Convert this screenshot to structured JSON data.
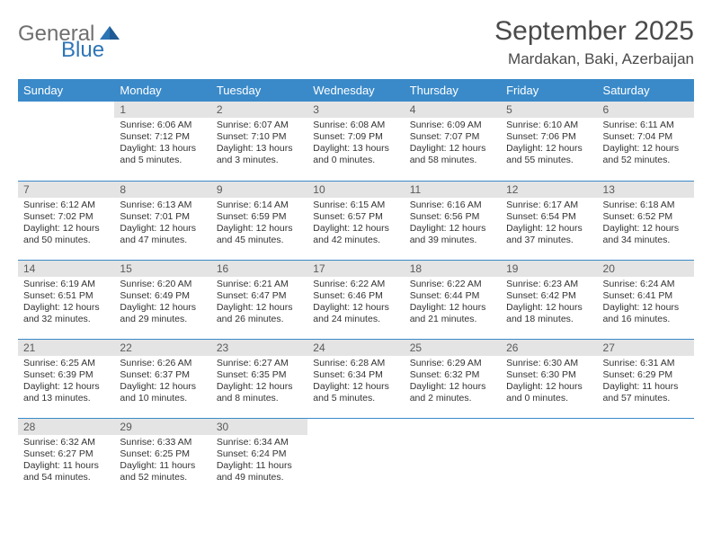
{
  "logo": {
    "general": "General",
    "blue": "Blue"
  },
  "title": "September 2025",
  "location": "Mardakan, Baki, Azerbaijan",
  "colors": {
    "header_bg": "#3a8ac9",
    "header_text": "#ffffff",
    "daynum_bg": "#e4e4e4",
    "row_border": "#3a8ac9",
    "logo_gray": "#6f6f6f",
    "logo_blue": "#2e75b6"
  },
  "weekdays": [
    "Sunday",
    "Monday",
    "Tuesday",
    "Wednesday",
    "Thursday",
    "Friday",
    "Saturday"
  ],
  "weeks": [
    [
      {
        "n": "",
        "t": ""
      },
      {
        "n": "1",
        "t": "Sunrise: 6:06 AM\nSunset: 7:12 PM\nDaylight: 13 hours and 5 minutes."
      },
      {
        "n": "2",
        "t": "Sunrise: 6:07 AM\nSunset: 7:10 PM\nDaylight: 13 hours and 3 minutes."
      },
      {
        "n": "3",
        "t": "Sunrise: 6:08 AM\nSunset: 7:09 PM\nDaylight: 13 hours and 0 minutes."
      },
      {
        "n": "4",
        "t": "Sunrise: 6:09 AM\nSunset: 7:07 PM\nDaylight: 12 hours and 58 minutes."
      },
      {
        "n": "5",
        "t": "Sunrise: 6:10 AM\nSunset: 7:06 PM\nDaylight: 12 hours and 55 minutes."
      },
      {
        "n": "6",
        "t": "Sunrise: 6:11 AM\nSunset: 7:04 PM\nDaylight: 12 hours and 52 minutes."
      }
    ],
    [
      {
        "n": "7",
        "t": "Sunrise: 6:12 AM\nSunset: 7:02 PM\nDaylight: 12 hours and 50 minutes."
      },
      {
        "n": "8",
        "t": "Sunrise: 6:13 AM\nSunset: 7:01 PM\nDaylight: 12 hours and 47 minutes."
      },
      {
        "n": "9",
        "t": "Sunrise: 6:14 AM\nSunset: 6:59 PM\nDaylight: 12 hours and 45 minutes."
      },
      {
        "n": "10",
        "t": "Sunrise: 6:15 AM\nSunset: 6:57 PM\nDaylight: 12 hours and 42 minutes."
      },
      {
        "n": "11",
        "t": "Sunrise: 6:16 AM\nSunset: 6:56 PM\nDaylight: 12 hours and 39 minutes."
      },
      {
        "n": "12",
        "t": "Sunrise: 6:17 AM\nSunset: 6:54 PM\nDaylight: 12 hours and 37 minutes."
      },
      {
        "n": "13",
        "t": "Sunrise: 6:18 AM\nSunset: 6:52 PM\nDaylight: 12 hours and 34 minutes."
      }
    ],
    [
      {
        "n": "14",
        "t": "Sunrise: 6:19 AM\nSunset: 6:51 PM\nDaylight: 12 hours and 32 minutes."
      },
      {
        "n": "15",
        "t": "Sunrise: 6:20 AM\nSunset: 6:49 PM\nDaylight: 12 hours and 29 minutes."
      },
      {
        "n": "16",
        "t": "Sunrise: 6:21 AM\nSunset: 6:47 PM\nDaylight: 12 hours and 26 minutes."
      },
      {
        "n": "17",
        "t": "Sunrise: 6:22 AM\nSunset: 6:46 PM\nDaylight: 12 hours and 24 minutes."
      },
      {
        "n": "18",
        "t": "Sunrise: 6:22 AM\nSunset: 6:44 PM\nDaylight: 12 hours and 21 minutes."
      },
      {
        "n": "19",
        "t": "Sunrise: 6:23 AM\nSunset: 6:42 PM\nDaylight: 12 hours and 18 minutes."
      },
      {
        "n": "20",
        "t": "Sunrise: 6:24 AM\nSunset: 6:41 PM\nDaylight: 12 hours and 16 minutes."
      }
    ],
    [
      {
        "n": "21",
        "t": "Sunrise: 6:25 AM\nSunset: 6:39 PM\nDaylight: 12 hours and 13 minutes."
      },
      {
        "n": "22",
        "t": "Sunrise: 6:26 AM\nSunset: 6:37 PM\nDaylight: 12 hours and 10 minutes."
      },
      {
        "n": "23",
        "t": "Sunrise: 6:27 AM\nSunset: 6:35 PM\nDaylight: 12 hours and 8 minutes."
      },
      {
        "n": "24",
        "t": "Sunrise: 6:28 AM\nSunset: 6:34 PM\nDaylight: 12 hours and 5 minutes."
      },
      {
        "n": "25",
        "t": "Sunrise: 6:29 AM\nSunset: 6:32 PM\nDaylight: 12 hours and 2 minutes."
      },
      {
        "n": "26",
        "t": "Sunrise: 6:30 AM\nSunset: 6:30 PM\nDaylight: 12 hours and 0 minutes."
      },
      {
        "n": "27",
        "t": "Sunrise: 6:31 AM\nSunset: 6:29 PM\nDaylight: 11 hours and 57 minutes."
      }
    ],
    [
      {
        "n": "28",
        "t": "Sunrise: 6:32 AM\nSunset: 6:27 PM\nDaylight: 11 hours and 54 minutes."
      },
      {
        "n": "29",
        "t": "Sunrise: 6:33 AM\nSunset: 6:25 PM\nDaylight: 11 hours and 52 minutes."
      },
      {
        "n": "30",
        "t": "Sunrise: 6:34 AM\nSunset: 6:24 PM\nDaylight: 11 hours and 49 minutes."
      },
      {
        "n": "",
        "t": ""
      },
      {
        "n": "",
        "t": ""
      },
      {
        "n": "",
        "t": ""
      },
      {
        "n": "",
        "t": ""
      }
    ]
  ]
}
